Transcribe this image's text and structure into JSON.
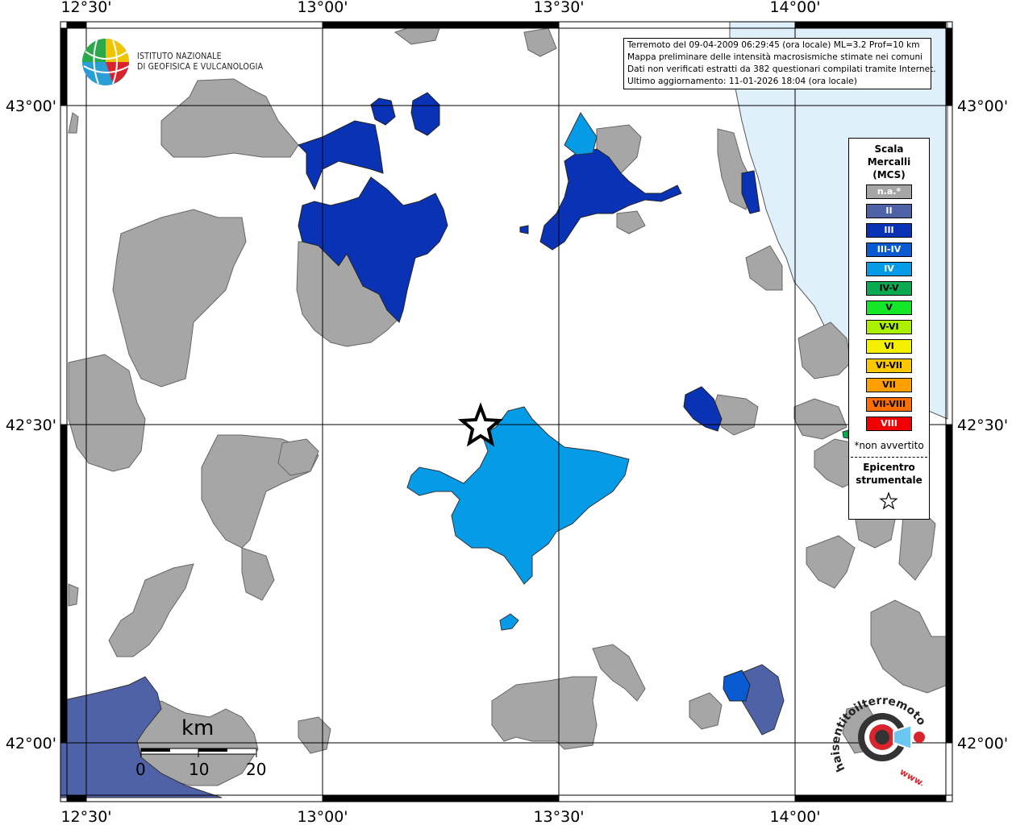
{
  "info": {
    "line1": "Terremoto del 09-04-2009 06:29:45 (ora locale) ML=3.2 Prof=10 km",
    "line2": "Mappa preliminare delle intensità macrosismiche stimate nei comuni",
    "line3": "Dati non verificati estratti da 382 questionari compilati tramite Internet.",
    "line4": "Ultimo aggiornamento: 11-01-2026 18:04 (ora locale)"
  },
  "logo": {
    "line1": "ISTITUTO NAZIONALE",
    "line2": "DI GEOFISICA E VULCANOLOGIA"
  },
  "axes": {
    "lon_ticks": [
      "12°30'",
      "13°00'",
      "13°30'",
      "14°00'"
    ],
    "lat_ticks": [
      "43°00'",
      "42°30'",
      "42°00'"
    ]
  },
  "legend": {
    "title1": "Scala",
    "title2": "Mercalli",
    "title3": "(MCS)",
    "items": [
      {
        "label": "n.a.*",
        "color": "#a6a6a6",
        "text_color": "#ffffff"
      },
      {
        "label": "II",
        "color": "#4f62a8",
        "text_color": "#ffffff"
      },
      {
        "label": "III",
        "color": "#0a32b4",
        "text_color": "#ffffff"
      },
      {
        "label": "III-IV",
        "color": "#0a5ad2",
        "text_color": "#ffffff"
      },
      {
        "label": "IV",
        "color": "#059be6",
        "text_color": "#ffffff"
      },
      {
        "label": "IV-V",
        "color": "#0aaa50",
        "text_color": "#000000"
      },
      {
        "label": "V",
        "color": "#14e628",
        "text_color": "#000000"
      },
      {
        "label": "V-VI",
        "color": "#aaf000",
        "text_color": "#000000"
      },
      {
        "label": "VI",
        "color": "#f5f000",
        "text_color": "#000000"
      },
      {
        "label": "VI-VII",
        "color": "#fac800",
        "text_color": "#000000"
      },
      {
        "label": "VII",
        "color": "#ffa000",
        "text_color": "#000000"
      },
      {
        "label": "VII-VIII",
        "color": "#ff6e00",
        "text_color": "#000000"
      },
      {
        "label": "VIII",
        "color": "#f00000",
        "text_color": "#ffffff"
      }
    ],
    "note": "*non avvertito",
    "epi1": "Epicentro",
    "epi2": "strumentale"
  },
  "scalebar": {
    "unit": "km",
    "labels": [
      "0",
      "10",
      "20"
    ]
  },
  "watermark": {
    "text": "haisentitoilterremoto.it",
    "www": "www."
  },
  "colors": {
    "sea": "#dff0fb",
    "na": "#a6a6a6",
    "ii": "#4f62a8",
    "iii": "#0a32b4",
    "iv": "#059be6",
    "iii_iv": "#0a5ad2"
  }
}
